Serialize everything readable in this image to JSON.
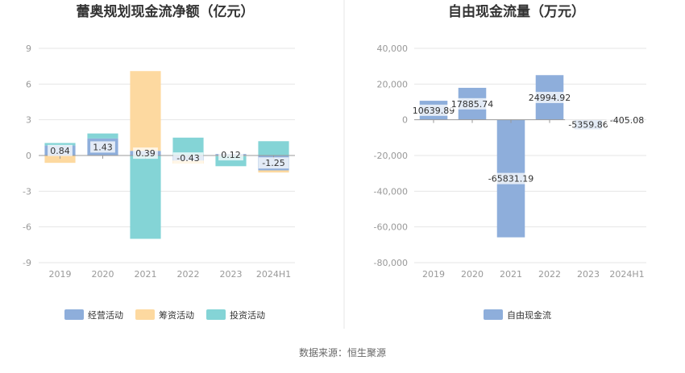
{
  "chart_data": [
    {
      "type": "bar",
      "stacked": true,
      "title": "蕾奥规划现金流净额（亿元）",
      "categories": [
        "2019",
        "2020",
        "2021",
        "2022",
        "2023",
        "2024H1"
      ],
      "ylim": [
        -9,
        9
      ],
      "yticks": [
        "9",
        "6",
        "3",
        "0",
        "-3",
        "-6",
        "-9"
      ],
      "grid": true,
      "legend_position": "bottom",
      "series": [
        {
          "name": "经营活动",
          "color": "#8eaedb",
          "values": [
            0.84,
            1.43,
            0.39,
            -0.43,
            0.12,
            -1.25
          ]
        },
        {
          "name": "筹资活动",
          "color": "#fdd9a0",
          "values": [
            -0.62,
            -0.04,
            6.7,
            -0.25,
            -0.05,
            -0.18
          ]
        },
        {
          "name": "投资活动",
          "color": "#84d4d6",
          "values": [
            0.21,
            0.42,
            -7.0,
            1.5,
            -0.85,
            1.2
          ]
        }
      ],
      "data_labels": [
        "0.84",
        "1.43",
        "0.39",
        "-0.43",
        "0.12",
        "-1.25"
      ]
    },
    {
      "type": "bar",
      "title": "自由现金流量（万元）",
      "categories": [
        "2019",
        "2020",
        "2021",
        "2022",
        "2023",
        "2024H1"
      ],
      "ylim": [
        -80000,
        40000
      ],
      "yticks": [
        "40,000",
        "20,000",
        "0",
        "-20,000",
        "-40,000",
        "-60,000",
        "-80,000"
      ],
      "grid": true,
      "legend_position": "bottom",
      "series": [
        {
          "name": "自由现金流",
          "color": "#8eaedb",
          "values": [
            10639.89,
            17885.74,
            -65831.19,
            24994.92,
            -5359.86,
            -405.08
          ]
        }
      ],
      "data_labels": [
        "10639.89",
        "17885.74",
        "-65831.19",
        "24994.92",
        "-5359.86",
        "-405.08"
      ]
    }
  ],
  "footer": "数据来源：恒生聚源"
}
